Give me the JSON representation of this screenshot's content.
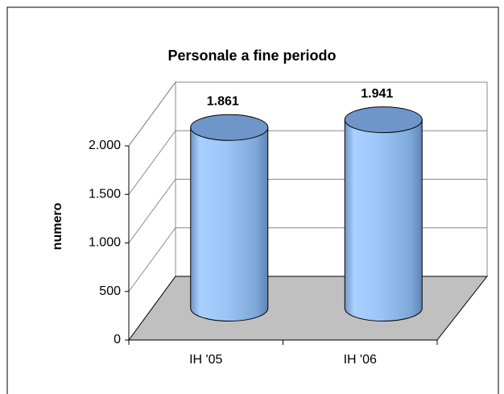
{
  "chart_data": {
    "type": "bar3d_cylinder",
    "title": "Personale a fine periodo",
    "ylabel": "numero",
    "categories": [
      "IH '05",
      "IH '06"
    ],
    "values": [
      1861,
      1941
    ],
    "value_labels": [
      "1.861",
      "1.941"
    ],
    "color": "#99ccff",
    "ylim": [
      0,
      2000
    ],
    "yticks": [
      0,
      500,
      {
        "value": 1000,
        "label": "1.000"
      },
      {
        "value": 1500,
        "label": "1.500"
      },
      {
        "value": 2000,
        "label": "2.000"
      }
    ],
    "grid": true
  }
}
